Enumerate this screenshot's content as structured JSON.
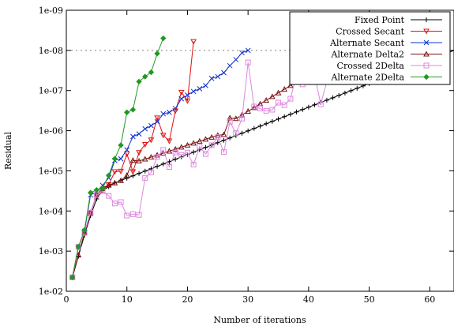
{
  "chart_data": {
    "type": "line",
    "xlabel": "Number of iterations",
    "ylabel": "Residual",
    "xlim": [
      0,
      64
    ],
    "ylim_log10": [
      -9,
      -2
    ],
    "log_y": true,
    "x_ticks": [
      0,
      10,
      20,
      30,
      40,
      50,
      60
    ],
    "y_ticks": [
      {
        "exp": -2,
        "label": "1e-02"
      },
      {
        "exp": -3,
        "label": "1e-03"
      },
      {
        "exp": -4,
        "label": "1e-04"
      },
      {
        "exp": -5,
        "label": "1e-05"
      },
      {
        "exp": -6,
        "label": "1e-06"
      },
      {
        "exp": -7,
        "label": "1e-07"
      },
      {
        "exp": -8,
        "label": "1e-08"
      },
      {
        "exp": -9,
        "label": "1e-09"
      }
    ],
    "reference_line": {
      "y": 1e-08,
      "style": "dotted",
      "color": "#808080"
    },
    "legend_position": "top-right",
    "series": [
      {
        "name": "Fixed Point",
        "color": "#000000",
        "marker": "plus",
        "start": [
          1,
          0.0045
        ],
        "segments": [
          [
            3,
            0.0004
          ],
          [
            4,
            0.00013
          ],
          [
            5,
            5e-05
          ],
          [
            6,
            3.1e-05
          ],
          [
            8,
            2e-05
          ],
          [
            64,
            1e-08
          ]
        ]
      },
      {
        "name": "Crossed Secant",
        "color": "#e01010",
        "marker": "triangle-down",
        "points": [
          [
            1,
            0.0045
          ],
          [
            2,
            0.00078
          ],
          [
            3,
            0.00035
          ],
          [
            4,
            0.00011
          ],
          [
            5,
            4e-05
          ],
          [
            6,
            3e-05
          ],
          [
            7,
            2.2e-05
          ],
          [
            8,
            1.05e-05
          ],
          [
            9,
            1.02e-05
          ],
          [
            10,
            3.8e-06
          ],
          [
            11,
            1.05e-05
          ],
          [
            12,
            3.5e-06
          ],
          [
            13,
            2.2e-06
          ],
          [
            14,
            1.7e-06
          ],
          [
            15,
            4.8e-07
          ],
          [
            16,
            1.3e-06
          ],
          [
            17,
            1.8e-06
          ],
          [
            18,
            3.2e-07
          ],
          [
            19,
            1.1e-07
          ],
          [
            20,
            1.8e-07
          ],
          [
            21,
            6e-09
          ]
        ]
      },
      {
        "name": "Alternate Secant",
        "color": "#1030d0",
        "marker": "cross",
        "points": [
          [
            1,
            0.0045
          ],
          [
            2,
            0.00078
          ],
          [
            3,
            0.00032
          ],
          [
            4,
            4e-05
          ],
          [
            5,
            3.3e-05
          ],
          [
            6,
            2.3e-05
          ],
          [
            7,
            1.5e-05
          ],
          [
            8,
            5.5e-06
          ],
          [
            9,
            5e-06
          ],
          [
            10,
            3e-06
          ],
          [
            11,
            1.4e-06
          ],
          [
            12,
            1.2e-06
          ],
          [
            13,
            9e-07
          ],
          [
            14,
            7.5e-07
          ],
          [
            15,
            6e-07
          ],
          [
            16,
            3.8e-07
          ],
          [
            17,
            3.5e-07
          ],
          [
            18,
            2.8e-07
          ],
          [
            19,
            1.6e-07
          ],
          [
            20,
            1.3e-07
          ],
          [
            21,
            1.05e-07
          ],
          [
            22,
            9e-08
          ],
          [
            23,
            7.5e-08
          ],
          [
            24,
            5e-08
          ],
          [
            25,
            4.5e-08
          ],
          [
            26,
            3.6e-08
          ],
          [
            27,
            2.4e-08
          ],
          [
            28,
            1.7e-08
          ],
          [
            29,
            1.15e-08
          ],
          [
            30,
            1e-08
          ]
        ]
      },
      {
        "name": "Alternate Delta2",
        "color": "#7a1010",
        "marker": "triangle-up",
        "start": [
          1,
          0.0045
        ],
        "segments": [
          [
            3,
            0.00035
          ],
          [
            4,
            0.00011
          ],
          [
            5,
            4e-05
          ],
          [
            6,
            2.6e-05
          ],
          [
            9,
            1.75e-05
          ],
          [
            10,
            1.3e-05
          ],
          [
            11,
            5.5e-06
          ],
          [
            12,
            5.7e-06
          ],
          [
            25,
            1.3e-06
          ],
          [
            26,
            1.25e-06
          ],
          [
            27,
            4.8e-07
          ],
          [
            28,
            5e-07
          ],
          [
            40,
            4e-08
          ],
          [
            49,
            1e-08
          ]
        ]
      },
      {
        "name": "Crossed 2Delta",
        "color": "#dd88dd",
        "marker": "square",
        "points": [
          [
            1,
            0.0045
          ],
          [
            2,
            0.00078
          ],
          [
            3,
            0.00035
          ],
          [
            4,
            0.00011
          ],
          [
            5,
            4e-05
          ],
          [
            6,
            3.2e-05
          ],
          [
            7,
            4.2e-05
          ],
          [
            8,
            6.5e-05
          ],
          [
            9,
            6e-05
          ],
          [
            10,
            0.00013
          ],
          [
            11,
            0.00012
          ],
          [
            12,
            0.000125
          ],
          [
            13,
            1.5e-05
          ],
          [
            14,
            1.1e-05
          ],
          [
            15,
            4.5e-06
          ],
          [
            16,
            3e-06
          ],
          [
            17,
            8e-06
          ],
          [
            18,
            3.5e-06
          ],
          [
            19,
            4e-06
          ],
          [
            20,
            3.5e-06
          ],
          [
            21,
            7e-06
          ],
          [
            22,
            2.5e-06
          ],
          [
            23,
            3.8e-06
          ],
          [
            24,
            2.3e-06
          ],
          [
            25,
            1.45e-06
          ],
          [
            26,
            3.4e-06
          ],
          [
            27,
            6e-07
          ],
          [
            28,
            1.15e-06
          ],
          [
            29,
            5e-07
          ],
          [
            30,
            2e-08
          ],
          [
            31,
            2.5e-07
          ],
          [
            32,
            2.8e-07
          ],
          [
            33,
            3.2e-07
          ],
          [
            34,
            3e-07
          ],
          [
            35,
            2e-07
          ],
          [
            36,
            2.3e-07
          ],
          [
            37,
            1.6e-07
          ],
          [
            38,
            4e-08
          ],
          [
            39,
            7e-08
          ],
          [
            40,
            4.5e-08
          ],
          [
            41,
            4e-08
          ],
          [
            42,
            2.2e-07
          ],
          [
            43,
            6e-08
          ],
          [
            44,
            8e-09
          ]
        ]
      },
      {
        "name": "Alternate 2Delta",
        "color": "#229922",
        "marker": "diamond",
        "points": [
          [
            1,
            0.0045
          ],
          [
            2,
            0.00078
          ],
          [
            3,
            0.0003
          ],
          [
            4,
            3.5e-05
          ],
          [
            5,
            3e-05
          ],
          [
            6,
            2.7e-05
          ],
          [
            7,
            1.3e-05
          ],
          [
            8,
            5e-06
          ],
          [
            9,
            2.3e-06
          ],
          [
            10,
            3.5e-07
          ],
          [
            11,
            3e-07
          ],
          [
            12,
            6e-08
          ],
          [
            13,
            4.5e-08
          ],
          [
            14,
            3.5e-08
          ],
          [
            15,
            1.2e-08
          ],
          [
            16,
            5e-09
          ]
        ]
      }
    ]
  }
}
